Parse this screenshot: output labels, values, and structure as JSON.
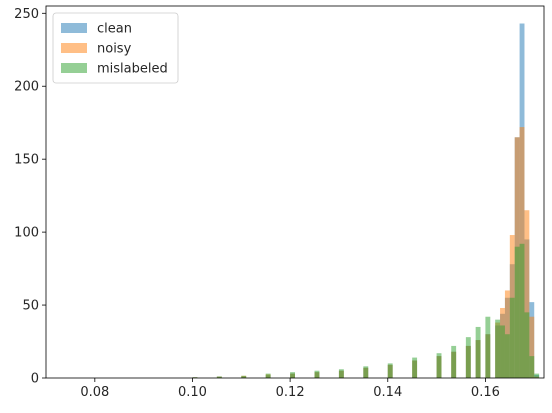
{
  "chart_data": {
    "type": "histogram",
    "title": "",
    "xlabel": "",
    "ylabel": "",
    "xlim": [
      0.07,
      0.172
    ],
    "ylim": [
      0,
      255
    ],
    "xticks": [
      0.08,
      0.1,
      0.12,
      0.14,
      0.16
    ],
    "xtick_labels": [
      "0.08",
      "0.10",
      "0.12",
      "0.14",
      "0.16"
    ],
    "yticks": [
      0,
      50,
      100,
      150,
      200,
      250
    ],
    "ytick_labels": [
      "0",
      "50",
      "100",
      "150",
      "200",
      "250"
    ],
    "grid": false,
    "legend_position": "upper-left",
    "bin_width": 0.001,
    "series": [
      {
        "name": "clean",
        "color": "#1f77b4",
        "opacity": 0.5,
        "bins": [
          [
            0.1,
            0.5
          ],
          [
            0.105,
            1
          ],
          [
            0.11,
            1
          ],
          [
            0.115,
            2
          ],
          [
            0.12,
            3
          ],
          [
            0.125,
            4
          ],
          [
            0.13,
            5
          ],
          [
            0.135,
            7
          ],
          [
            0.14,
            9
          ],
          [
            0.145,
            12
          ],
          [
            0.15,
            15
          ],
          [
            0.153,
            18
          ],
          [
            0.156,
            22
          ],
          [
            0.158,
            26
          ],
          [
            0.16,
            30
          ],
          [
            0.162,
            36
          ],
          [
            0.163,
            44
          ],
          [
            0.164,
            55
          ],
          [
            0.165,
            78
          ],
          [
            0.166,
            165
          ],
          [
            0.167,
            243
          ],
          [
            0.168,
            95
          ],
          [
            0.169,
            52
          ],
          [
            0.17,
            2
          ]
        ]
      },
      {
        "name": "noisy",
        "color": "#ff7f0e",
        "opacity": 0.5,
        "bins": [
          [
            0.1,
            0.5
          ],
          [
            0.105,
            1
          ],
          [
            0.11,
            1.5
          ],
          [
            0.115,
            2.5
          ],
          [
            0.12,
            3
          ],
          [
            0.125,
            4
          ],
          [
            0.13,
            5
          ],
          [
            0.135,
            7
          ],
          [
            0.14,
            9
          ],
          [
            0.145,
            12
          ],
          [
            0.15,
            15
          ],
          [
            0.153,
            18
          ],
          [
            0.156,
            22
          ],
          [
            0.158,
            26
          ],
          [
            0.16,
            30
          ],
          [
            0.162,
            38
          ],
          [
            0.163,
            48
          ],
          [
            0.164,
            60
          ],
          [
            0.165,
            98
          ],
          [
            0.166,
            165
          ],
          [
            0.167,
            172
          ],
          [
            0.168,
            115
          ],
          [
            0.169,
            42
          ],
          [
            0.17,
            1
          ]
        ]
      },
      {
        "name": "mislabeled",
        "color": "#2ca02c",
        "opacity": 0.5,
        "bins": [
          [
            0.1,
            0.5
          ],
          [
            0.105,
            1
          ],
          [
            0.11,
            1.5
          ],
          [
            0.115,
            3
          ],
          [
            0.12,
            4
          ],
          [
            0.125,
            5
          ],
          [
            0.13,
            6
          ],
          [
            0.135,
            8
          ],
          [
            0.14,
            10
          ],
          [
            0.145,
            14
          ],
          [
            0.15,
            17
          ],
          [
            0.153,
            22
          ],
          [
            0.156,
            28
          ],
          [
            0.158,
            35
          ],
          [
            0.16,
            42
          ],
          [
            0.162,
            40
          ],
          [
            0.163,
            36
          ],
          [
            0.164,
            30
          ],
          [
            0.165,
            55
          ],
          [
            0.166,
            90
          ],
          [
            0.167,
            92
          ],
          [
            0.168,
            45
          ],
          [
            0.169,
            15
          ],
          [
            0.17,
            3
          ]
        ]
      }
    ]
  }
}
